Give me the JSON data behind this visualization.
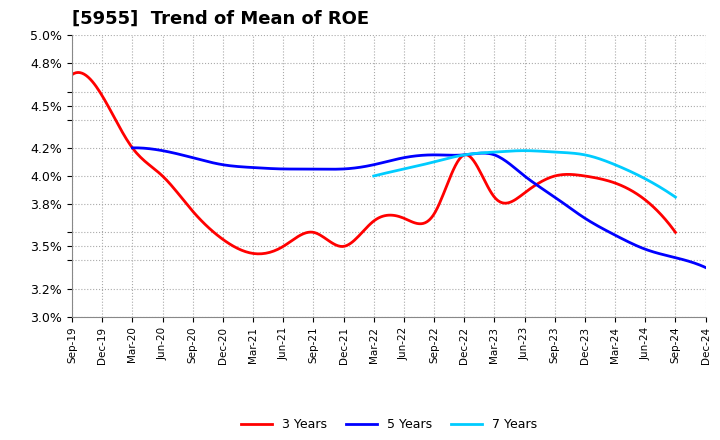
{
  "title": "[5955]  Trend of Mean of ROE",
  "ylim": [
    0.03,
    0.05
  ],
  "yticks": [
    0.03,
    0.032,
    0.034,
    0.035,
    0.036,
    0.038,
    0.04,
    0.042,
    0.044,
    0.045,
    0.046,
    0.048,
    0.05
  ],
  "ytick_labels": [
    "3.0%",
    "3.2%",
    "",
    "3.5%",
    "",
    "3.8%",
    "4.0%",
    "4.2%",
    "",
    "4.5%",
    "",
    "4.8%",
    "5.0%"
  ],
  "x_labels": [
    "Sep-19",
    "Dec-19",
    "Mar-20",
    "Jun-20",
    "Sep-20",
    "Dec-20",
    "Mar-21",
    "Jun-21",
    "Sep-21",
    "Dec-21",
    "Mar-22",
    "Jun-22",
    "Sep-22",
    "Dec-22",
    "Mar-23",
    "Jun-23",
    "Sep-23",
    "Dec-23",
    "Mar-24",
    "Jun-24",
    "Sep-24",
    "Dec-24"
  ],
  "series": {
    "3 Years": {
      "color": "#ff0000",
      "data": [
        0.0472,
        0.0457,
        0.042,
        0.04,
        0.0375,
        0.0355,
        0.0345,
        0.035,
        0.036,
        0.035,
        0.0368,
        0.037,
        0.0373,
        0.0415,
        0.0385,
        0.0388,
        0.04,
        0.04,
        0.0395,
        0.0383,
        0.036,
        null
      ]
    },
    "5 Years": {
      "color": "#0000ff",
      "data": [
        null,
        null,
        0.042,
        0.0418,
        0.0413,
        0.0408,
        0.0406,
        0.0405,
        0.0405,
        0.0405,
        0.0408,
        0.0413,
        0.0415,
        0.0415,
        0.0415,
        0.04,
        0.0385,
        0.037,
        0.0358,
        0.0348,
        0.0342,
        0.0335
      ]
    },
    "7 Years": {
      "color": "#00ccff",
      "data": [
        null,
        null,
        null,
        null,
        null,
        null,
        null,
        null,
        null,
        null,
        0.04,
        0.0405,
        0.041,
        0.0415,
        0.0417,
        0.0418,
        0.0417,
        0.0415,
        0.0408,
        0.0398,
        0.0385,
        null
      ]
    },
    "10 Years": {
      "color": "#008000",
      "data": [
        null,
        null,
        null,
        null,
        null,
        null,
        null,
        null,
        null,
        null,
        null,
        null,
        null,
        null,
        null,
        null,
        null,
        null,
        null,
        null,
        null,
        null
      ]
    }
  },
  "background_color": "#ffffff",
  "grid_color": "#aaaaaa",
  "title_fontsize": 13,
  "figsize": [
    7.2,
    4.4
  ],
  "dpi": 100
}
